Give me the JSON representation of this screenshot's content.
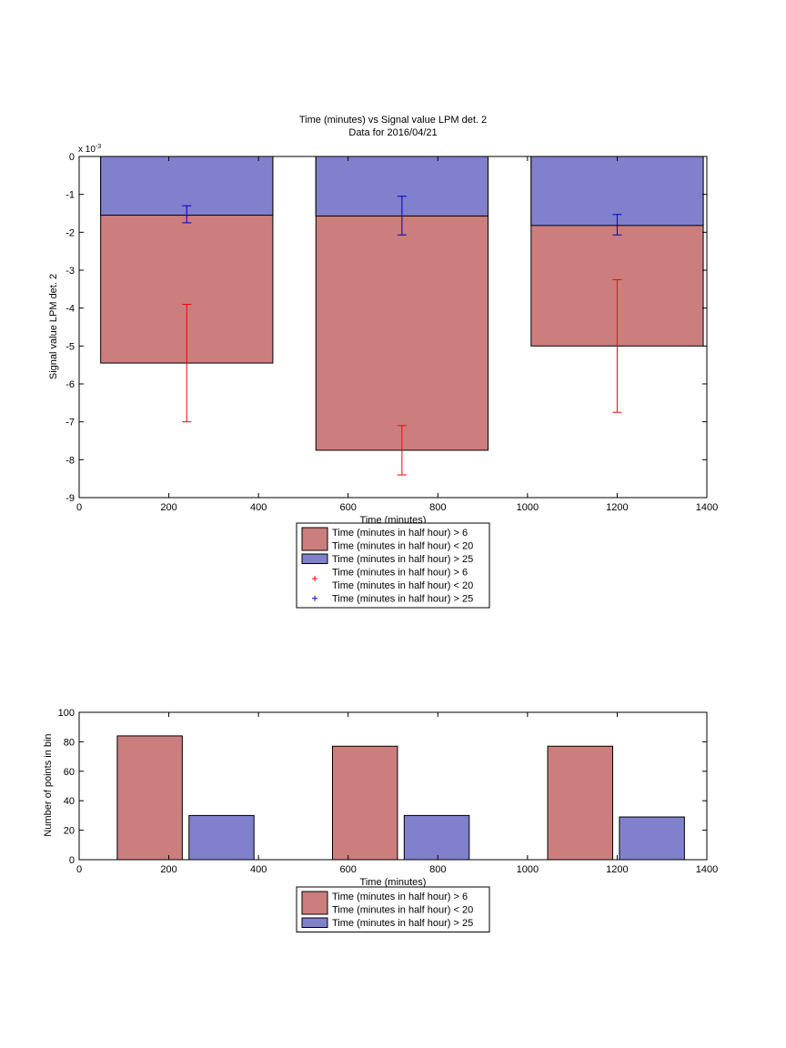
{
  "chart_data": [
    {
      "type": "bar",
      "title": "Time (minutes) vs Signal value LPM det. 2",
      "subtitle": "Data for 2016/04/21",
      "xlabel": "Time (minutes)",
      "ylabel": "Signal value LPM det. 2",
      "y_exponent_label": "x 10",
      "y_exponent_power": "-3",
      "xlim": [
        0,
        1400
      ],
      "ylim": [
        -9,
        0
      ],
      "xticks": [
        "0",
        "200",
        "400",
        "600",
        "800",
        "1000",
        "1200",
        "1400"
      ],
      "yticks": [
        "0",
        "-1",
        "-2",
        "-3",
        "-4",
        "-5",
        "-6",
        "-7",
        "-8",
        "-9"
      ],
      "grid": false,
      "legend_position": "below",
      "bar_centers": [
        240,
        720,
        1200
      ],
      "bar_width": 384,
      "series": [
        {
          "name": "Time (minutes in half hour) > 6\nTime (minutes in half hour) < 20",
          "color": "#cc7e7e",
          "values": [
            -5.45,
            -7.75,
            -5.0
          ],
          "errorbar_color": "#ff0000",
          "errors": [
            {
              "low": -7.0,
              "high": -3.9
            },
            {
              "low": -8.4,
              "high": -7.1
            },
            {
              "low": -6.75,
              "high": -3.25
            }
          ]
        },
        {
          "name": "Time (minutes in half hour) > 25",
          "color": "#8080cc",
          "values": [
            -1.55,
            -1.57,
            -1.82
          ],
          "errorbar_color": "#0000cc",
          "errors": [
            {
              "low": -1.75,
              "high": -1.3
            },
            {
              "low": -2.07,
              "high": -1.05
            },
            {
              "low": -2.07,
              "high": -1.53
            }
          ]
        }
      ],
      "legend": [
        {
          "kind": "patch",
          "color": "#cc7e7e",
          "lines": [
            "Time (minutes in half hour) > 6",
            "Time (minutes in half hour) < 20"
          ]
        },
        {
          "kind": "patch",
          "color": "#8080cc",
          "lines": [
            "Time (minutes in half hour) > 25"
          ]
        },
        {
          "kind": "marker",
          "color": "#ff0000",
          "lines": [
            "Time (minutes in half hour) > 6",
            "Time (minutes in half hour) < 20"
          ]
        },
        {
          "kind": "marker",
          "color": "#0000cc",
          "lines": [
            "Time (minutes in half hour) > 25"
          ]
        }
      ]
    },
    {
      "type": "bar",
      "xlabel": "Time (minutes)",
      "ylabel": "Number of points in bin",
      "xlim": [
        0,
        1400
      ],
      "ylim": [
        0,
        100
      ],
      "xticks": [
        "0",
        "200",
        "400",
        "600",
        "800",
        "1000",
        "1200",
        "1400"
      ],
      "yticks": [
        "0",
        "20",
        "40",
        "60",
        "80",
        "100"
      ],
      "grid": false,
      "legend_position": "below",
      "series": [
        {
          "name": "Time (minutes in half hour) > 6\nTime (minutes in half hour) < 20",
          "color": "#cc7e7e",
          "bars": [
            {
              "x_start": 85,
              "x_end": 230,
              "value": 84
            },
            {
              "x_start": 565,
              "x_end": 710,
              "value": 77
            },
            {
              "x_start": 1045,
              "x_end": 1190,
              "value": 77
            }
          ]
        },
        {
          "name": "Time (minutes in half hour) > 25",
          "color": "#8080cc",
          "bars": [
            {
              "x_start": 245,
              "x_end": 390,
              "value": 30
            },
            {
              "x_start": 725,
              "x_end": 870,
              "value": 30
            },
            {
              "x_start": 1205,
              "x_end": 1350,
              "value": 29
            }
          ]
        }
      ],
      "legend": [
        {
          "kind": "patch",
          "color": "#cc7e7e",
          "lines": [
            "Time (minutes in half hour) > 6",
            "Time (minutes in half hour) < 20"
          ]
        },
        {
          "kind": "patch",
          "color": "#8080cc",
          "lines": [
            "Time (minutes in half hour) > 25"
          ]
        }
      ]
    }
  ]
}
